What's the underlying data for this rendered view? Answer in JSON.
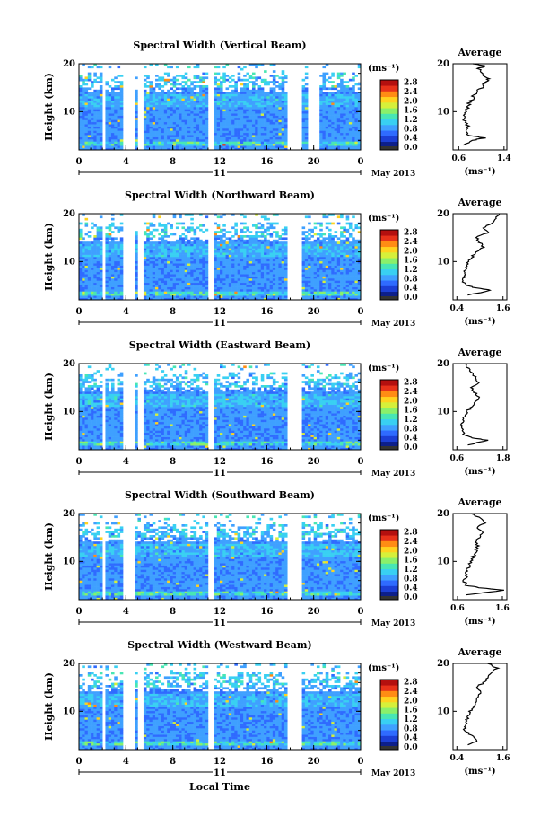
{
  "figure": {
    "xlabel": "Local Time",
    "date_label": "May 2013",
    "day_label": "11",
    "ylabel": "Height (km)",
    "avg_title": "Average",
    "unit": "(ms⁻¹)",
    "colormap": [
      "#0d1f8a",
      "#1c3fd6",
      "#2f6bff",
      "#3fa0ff",
      "#39d0f2",
      "#48e6b4",
      "#8af06a",
      "#d6f03a",
      "#ffd21f",
      "#ff8c14",
      "#e8321a",
      "#b4100f"
    ]
  },
  "chart_data": [
    {
      "type": "heatmap",
      "title": "Spectral Width (Vertical Beam)",
      "xlabel": "Local Time",
      "ylabel": "Height (km)",
      "x_ticks": [
        "0",
        "4",
        "8",
        "12",
        "16",
        "20",
        "0"
      ],
      "xlim": [
        0,
        24
      ],
      "y_ticks": [
        "20",
        "10"
      ],
      "ylim": [
        2,
        20
      ],
      "colorbar": {
        "label": "(ms⁻¹)",
        "ticks": [
          "2.8",
          "2.4",
          "2.0",
          "1.6",
          "1.2",
          "0.8",
          "0.4",
          "0.0"
        ],
        "range": [
          0,
          2.9
        ]
      },
      "data_gaps_hours": [
        [
          1.9,
          2.3
        ],
        [
          3.7,
          4.8
        ],
        [
          5.1,
          5.6
        ],
        [
          11.1,
          11.6
        ],
        [
          17.8,
          19.1
        ],
        [
          19.6,
          20.4
        ]
      ],
      "average": {
        "title": "Average",
        "xlabel": "(ms⁻¹)",
        "x_ticks": [
          "0.6",
          "1.4"
        ],
        "xlim": [
          0.5,
          1.45
        ],
        "y_ticks": [
          "20",
          "10"
        ],
        "ylim": [
          2,
          20
        ],
        "height_km": [
          3,
          4,
          4.5,
          5,
          6,
          7,
          8,
          9,
          10,
          11,
          12,
          13,
          14,
          15,
          16,
          16.5,
          17,
          18,
          19,
          19.5,
          20
        ],
        "width_ms": [
          0.7,
          0.85,
          1.05,
          0.8,
          0.7,
          0.75,
          0.72,
          0.7,
          0.72,
          0.75,
          0.8,
          0.85,
          0.9,
          1.0,
          1.05,
          1.15,
          1.1,
          1.0,
          0.95,
          1.05,
          0.85
        ]
      }
    },
    {
      "type": "heatmap",
      "title": "Spectral Width (Northward Beam)",
      "xlabel": "Local Time",
      "ylabel": "Height (km)",
      "x_ticks": [
        "0",
        "4",
        "8",
        "12",
        "16",
        "20",
        "0"
      ],
      "xlim": [
        0,
        24
      ],
      "y_ticks": [
        "20",
        "10"
      ],
      "ylim": [
        2,
        20
      ],
      "colorbar": {
        "label": "(ms⁻¹)",
        "ticks": [
          "2.8",
          "2.4",
          "2.0",
          "1.6",
          "1.2",
          "0.8",
          "0.4",
          "0.0"
        ],
        "range": [
          0,
          2.9
        ]
      },
      "data_gaps_hours": [
        [
          1.9,
          2.3
        ],
        [
          3.7,
          4.8
        ],
        [
          5.1,
          5.6
        ],
        [
          11.1,
          11.6
        ],
        [
          17.8,
          19.1
        ]
      ],
      "average": {
        "title": "Average",
        "xlabel": "(ms⁻¹)",
        "x_ticks": [
          "0.4",
          "1.6"
        ],
        "xlim": [
          0.3,
          1.7
        ],
        "y_ticks": [
          "20",
          "10"
        ],
        "ylim": [
          2,
          20
        ],
        "height_km": [
          3,
          4,
          4.5,
          5,
          6,
          7,
          8,
          9,
          10,
          11,
          12,
          13,
          14,
          15,
          16,
          17,
          18,
          19,
          20
        ],
        "width_ms": [
          0.7,
          1.3,
          0.9,
          0.65,
          0.55,
          0.6,
          0.6,
          0.65,
          0.7,
          0.8,
          0.9,
          1.1,
          1.0,
          0.9,
          1.2,
          1.1,
          1.3,
          1.4,
          1.5
        ]
      }
    },
    {
      "type": "heatmap",
      "title": "Spectral Width (Eastward Beam)",
      "xlabel": "Local Time",
      "ylabel": "Height (km)",
      "x_ticks": [
        "0",
        "4",
        "8",
        "12",
        "16",
        "20",
        "0"
      ],
      "xlim": [
        0,
        24
      ],
      "y_ticks": [
        "20",
        "10"
      ],
      "ylim": [
        2,
        20
      ],
      "colorbar": {
        "label": "(ms⁻¹)",
        "ticks": [
          "2.8",
          "2.4",
          "2.0",
          "1.6",
          "1.2",
          "0.8",
          "0.4",
          "0.0"
        ],
        "range": [
          0,
          2.9
        ]
      },
      "data_gaps_hours": [
        [
          1.9,
          2.3
        ],
        [
          3.7,
          4.8
        ],
        [
          5.1,
          5.6
        ],
        [
          11.1,
          11.6
        ],
        [
          17.8,
          19.1
        ]
      ],
      "average": {
        "title": "Average",
        "xlabel": "(ms⁻¹)",
        "x_ticks": [
          "0.6",
          "1.8"
        ],
        "xlim": [
          0.5,
          1.9
        ],
        "y_ticks": [
          "20",
          "10"
        ],
        "ylim": [
          2,
          20
        ],
        "height_km": [
          3,
          4,
          4.5,
          5,
          6,
          7,
          8,
          9,
          10,
          11,
          12,
          13,
          14,
          15,
          16,
          17,
          18,
          19,
          20
        ],
        "width_ms": [
          0.9,
          1.4,
          1.0,
          0.8,
          0.75,
          0.72,
          0.75,
          0.8,
          0.85,
          1.0,
          1.1,
          1.2,
          1.05,
          1.0,
          1.15,
          1.1,
          1.0,
          0.9,
          0.8
        ]
      }
    },
    {
      "type": "heatmap",
      "title": "Spectral Width (Southward Beam)",
      "xlabel": "Local Time",
      "ylabel": "Height (km)",
      "x_ticks": [
        "0",
        "4",
        "8",
        "12",
        "16",
        "20",
        "0"
      ],
      "xlim": [
        0,
        24
      ],
      "y_ticks": [
        "20",
        "10"
      ],
      "ylim": [
        2,
        20
      ],
      "colorbar": {
        "label": "(ms⁻¹)",
        "ticks": [
          "2.8",
          "2.4",
          "2.0",
          "1.6",
          "1.2",
          "0.8",
          "0.4",
          "0.0"
        ],
        "range": [
          0,
          2.9
        ]
      },
      "data_gaps_hours": [
        [
          1.9,
          2.3
        ],
        [
          3.7,
          4.8
        ],
        [
          11.1,
          11.6
        ],
        [
          17.8,
          19.1
        ]
      ],
      "average": {
        "title": "Average",
        "xlabel": "(ms⁻¹)",
        "x_ticks": [
          "0.6",
          "1.6"
        ],
        "xlim": [
          0.5,
          1.7
        ],
        "y_ticks": [
          "20",
          "10"
        ],
        "ylim": [
          2,
          20
        ],
        "height_km": [
          3,
          4,
          4.5,
          5,
          6,
          7,
          8,
          9,
          10,
          11,
          12,
          13,
          14,
          15,
          16,
          17,
          18,
          19,
          20
        ],
        "width_ms": [
          0.8,
          1.65,
          1.1,
          0.8,
          0.75,
          0.8,
          0.82,
          0.85,
          0.9,
          0.95,
          1.0,
          1.05,
          1.0,
          1.1,
          1.15,
          1.05,
          1.2,
          1.1,
          0.9
        ]
      }
    },
    {
      "type": "heatmap",
      "title": "Spectral Width (Westward Beam)",
      "xlabel": "Local Time",
      "ylabel": "Height (km)",
      "x_ticks": [
        "0",
        "4",
        "8",
        "12",
        "16",
        "20",
        "0"
      ],
      "xlim": [
        0,
        24
      ],
      "y_ticks": [
        "20",
        "10"
      ],
      "ylim": [
        2,
        20
      ],
      "colorbar": {
        "label": "(ms⁻¹)",
        "ticks": [
          "2.8",
          "2.4",
          "2.0",
          "1.6",
          "1.2",
          "0.8",
          "0.4",
          "0.0"
        ],
        "range": [
          0,
          2.9
        ]
      },
      "data_gaps_hours": [
        [
          1.9,
          2.3
        ],
        [
          3.7,
          4.8
        ],
        [
          5.1,
          5.6
        ],
        [
          11.1,
          11.6
        ],
        [
          17.8,
          19.1
        ]
      ],
      "average": {
        "title": "Average",
        "xlabel": "(ms⁻¹)",
        "x_ticks": [
          "0.4",
          "1.6"
        ],
        "xlim": [
          0.3,
          1.7
        ],
        "y_ticks": [
          "20",
          "10"
        ],
        "ylim": [
          2,
          20
        ],
        "height_km": [
          3,
          4,
          5,
          6,
          7,
          8,
          9,
          10,
          11,
          12,
          13,
          14,
          15,
          16,
          17,
          18,
          19,
          20
        ],
        "width_ms": [
          0.7,
          0.95,
          0.75,
          0.6,
          0.6,
          0.65,
          0.7,
          0.75,
          0.85,
          0.9,
          0.95,
          1.0,
          0.9,
          1.1,
          1.2,
          1.3,
          1.45,
          1.2
        ]
      }
    }
  ]
}
